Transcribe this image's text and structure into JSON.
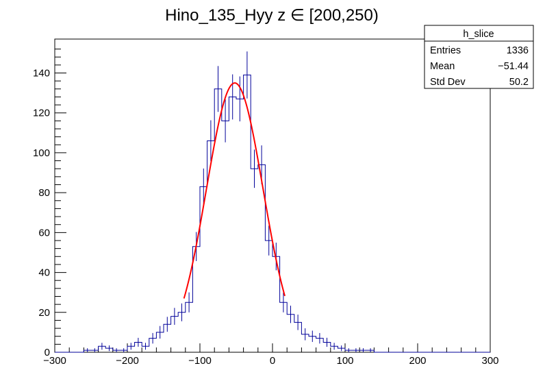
{
  "chart_data": {
    "type": "histogram",
    "title": "Hino_135_Hyy z  ∈ [200,250)",
    "xlabel": "",
    "ylabel": "",
    "xlim": [
      -300,
      300
    ],
    "ylim": [
      0,
      157
    ],
    "bin_width": 10,
    "x_ticks": [
      "−300",
      "−200",
      "−100",
      "0",
      "100",
      "200",
      "300"
    ],
    "x_tick_values": [
      -300,
      -200,
      -100,
      0,
      100,
      200,
      300
    ],
    "y_ticks": [
      "0",
      "20",
      "40",
      "60",
      "80",
      "100",
      "120",
      "140"
    ],
    "y_tick_values": [
      0,
      20,
      40,
      60,
      80,
      100,
      120,
      140
    ],
    "bins": [
      {
        "x": -260,
        "y": 1
      },
      {
        "x": -250,
        "y": 1
      },
      {
        "x": -240,
        "y": 3
      },
      {
        "x": -230,
        "y": 2
      },
      {
        "x": -220,
        "y": 1
      },
      {
        "x": -210,
        "y": 1
      },
      {
        "x": -200,
        "y": 3
      },
      {
        "x": -190,
        "y": 5
      },
      {
        "x": -180,
        "y": 3
      },
      {
        "x": -170,
        "y": 7
      },
      {
        "x": -160,
        "y": 10
      },
      {
        "x": -150,
        "y": 14
      },
      {
        "x": -140,
        "y": 18
      },
      {
        "x": -130,
        "y": 20
      },
      {
        "x": -120,
        "y": 25
      },
      {
        "x": -110,
        "y": 53
      },
      {
        "x": -100,
        "y": 83
      },
      {
        "x": -90,
        "y": 106
      },
      {
        "x": -80,
        "y": 132
      },
      {
        "x": -70,
        "y": 116
      },
      {
        "x": -60,
        "y": 128
      },
      {
        "x": -50,
        "y": 127
      },
      {
        "x": -40,
        "y": 139
      },
      {
        "x": -30,
        "y": 92
      },
      {
        "x": -20,
        "y": 94
      },
      {
        "x": -10,
        "y": 56
      },
      {
        "x": 0,
        "y": 48
      },
      {
        "x": 10,
        "y": 25
      },
      {
        "x": 20,
        "y": 19
      },
      {
        "x": 30,
        "y": 15
      },
      {
        "x": 40,
        "y": 9
      },
      {
        "x": 50,
        "y": 8
      },
      {
        "x": 60,
        "y": 7
      },
      {
        "x": 70,
        "y": 5
      },
      {
        "x": 80,
        "y": 3
      },
      {
        "x": 90,
        "y": 2
      },
      {
        "x": 100,
        "y": 1
      },
      {
        "x": 110,
        "y": 1
      },
      {
        "x": 120,
        "y": 1
      },
      {
        "x": 130,
        "y": 1
      }
    ],
    "fit": {
      "type": "gaussian",
      "amplitude": 135,
      "mean": -52,
      "sigma": 39,
      "range": [
        -122,
        17
      ],
      "color": "#ff0000"
    },
    "histogram_color": "#000099",
    "stats_box": {
      "title": "h_slice",
      "rows": [
        {
          "label": "Entries",
          "value": "1336"
        },
        {
          "label": "Mean",
          "value": "−51.44"
        },
        {
          "label": "Std Dev",
          "value": "50.2"
        }
      ],
      "placement": "top-right"
    }
  }
}
